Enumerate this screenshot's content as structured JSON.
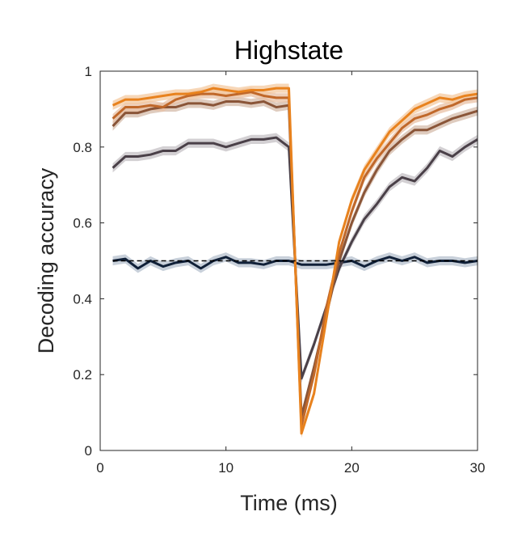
{
  "chart_data": {
    "type": "line",
    "title": "Highstate",
    "xlabel": "Time (ms)",
    "ylabel": "Decoding accuracy",
    "xlim": [
      0,
      30
    ],
    "ylim": [
      0,
      1
    ],
    "xticks": [
      0,
      10,
      20,
      30
    ],
    "yticks": [
      0,
      0.2,
      0.4,
      0.6,
      0.8,
      1
    ],
    "ytick_labels": [
      "0",
      "0.2",
      "0.4",
      "0.6",
      "0.8",
      "1"
    ],
    "grid": false,
    "legend": "none",
    "x": [
      1,
      2,
      3,
      4,
      5,
      6,
      7,
      8,
      9,
      10,
      11,
      12,
      13,
      14,
      15,
      16,
      17,
      18,
      19,
      20,
      21,
      22,
      23,
      24,
      25,
      26,
      27,
      28,
      29,
      30
    ],
    "reference_line": {
      "y": 0.5,
      "style": "dashed",
      "color": "#000000"
    },
    "series": [
      {
        "color": "#E8821E",
        "band_color": "#F4C9A0",
        "values": [
          0.91,
          0.925,
          0.925,
          0.93,
          0.935,
          0.94,
          0.94,
          0.945,
          0.955,
          0.95,
          0.945,
          0.95,
          0.95,
          0.955,
          0.955,
          0.045,
          0.15,
          0.35,
          0.55,
          0.66,
          0.74,
          0.79,
          0.84,
          0.87,
          0.9,
          0.915,
          0.93,
          0.925,
          0.935,
          0.94
        ]
      },
      {
        "color": "#C0682A",
        "band_color": "#E8C0A4",
        "values": [
          0.875,
          0.905,
          0.905,
          0.91,
          0.905,
          0.925,
          0.935,
          0.94,
          0.94,
          0.935,
          0.94,
          0.945,
          0.935,
          0.93,
          0.93,
          0.065,
          0.2,
          0.38,
          0.52,
          0.63,
          0.72,
          0.77,
          0.81,
          0.85,
          0.875,
          0.885,
          0.9,
          0.91,
          0.925,
          0.93
        ]
      },
      {
        "color": "#8A5538",
        "band_color": "#D4BBAA",
        "values": [
          0.855,
          0.89,
          0.89,
          0.9,
          0.905,
          0.905,
          0.915,
          0.915,
          0.91,
          0.92,
          0.92,
          0.915,
          0.92,
          0.905,
          0.91,
          0.09,
          0.22,
          0.36,
          0.5,
          0.6,
          0.68,
          0.74,
          0.79,
          0.82,
          0.845,
          0.845,
          0.86,
          0.875,
          0.885,
          0.895
        ]
      },
      {
        "color": "#4A4048",
        "band_color": "#C4C0C4",
        "values": [
          0.745,
          0.775,
          0.775,
          0.78,
          0.79,
          0.79,
          0.81,
          0.81,
          0.81,
          0.8,
          0.81,
          0.82,
          0.82,
          0.825,
          0.8,
          0.19,
          0.28,
          0.38,
          0.48,
          0.55,
          0.61,
          0.65,
          0.695,
          0.72,
          0.71,
          0.745,
          0.79,
          0.775,
          0.8,
          0.82
        ]
      },
      {
        "color": "#102038",
        "band_color": "#B6C0CE",
        "values": [
          0.5,
          0.505,
          0.48,
          0.5,
          0.485,
          0.495,
          0.5,
          0.48,
          0.5,
          0.51,
          0.495,
          0.495,
          0.49,
          0.5,
          0.5,
          0.49,
          0.49,
          0.49,
          0.495,
          0.5,
          0.485,
          0.5,
          0.51,
          0.5,
          0.51,
          0.495,
          0.5,
          0.5,
          0.495,
          0.5
        ]
      }
    ]
  }
}
